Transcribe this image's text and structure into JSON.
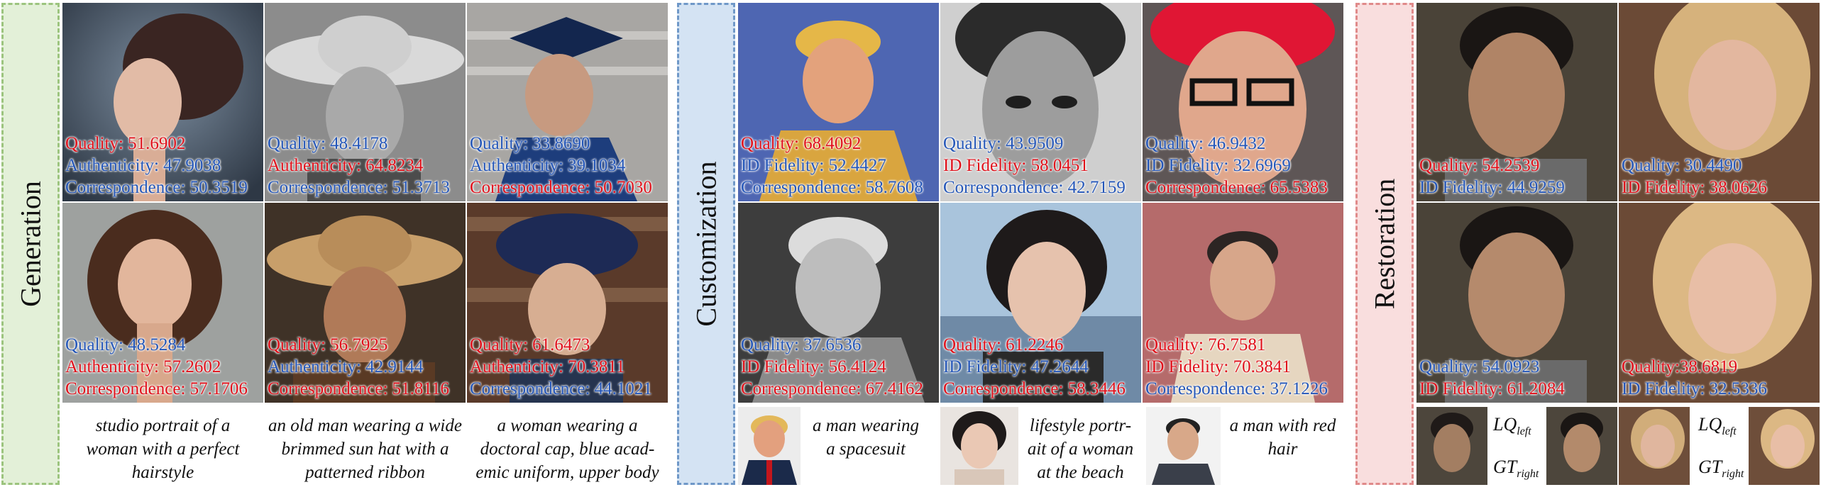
{
  "sections": {
    "generation": "Generation",
    "customization": "Customization",
    "restoration": "Restoration"
  },
  "generation": {
    "cells": [
      {
        "rows": [
          {
            "text": "Quality: 51.6902",
            "color": "red"
          },
          {
            "text": "Authenticity: 47.9038",
            "color": "blue"
          },
          {
            "text": "Correspondence: 50.3519",
            "color": "blue"
          }
        ]
      },
      {
        "rows": [
          {
            "text": "Quality: 48.4178",
            "color": "blue"
          },
          {
            "text": "Authenticity: 64.8234",
            "color": "red"
          },
          {
            "text": "Correspondence: 51.3713",
            "color": "blue"
          }
        ]
      },
      {
        "rows": [
          {
            "text": "Quality: 33.8690",
            "color": "blue"
          },
          {
            "text": "Authenticity: 39.1034",
            "color": "blue"
          },
          {
            "text": "Correspondence: 50.7030",
            "color": "red"
          }
        ]
      },
      {
        "rows": [
          {
            "text": "Quality: 48.5284",
            "color": "blue"
          },
          {
            "text": "Authenticity: 57.2602",
            "color": "red"
          },
          {
            "text": "Correspondence: 57.1706",
            "color": "red"
          }
        ]
      },
      {
        "rows": [
          {
            "text": "Quality: 56.7925",
            "color": "red"
          },
          {
            "text": "Authenticity: 42.9144",
            "color": "blue"
          },
          {
            "text": "Correspondence: 51.8116",
            "color": "red"
          }
        ]
      },
      {
        "rows": [
          {
            "text": "Quality: 61.6473",
            "color": "red"
          },
          {
            "text": "Authenticity: 70.3811",
            "color": "red"
          },
          {
            "text": "Correspondence: 44.1021",
            "color": "blue"
          }
        ]
      }
    ],
    "captions": [
      "studio portrait of a woman with a perfect hairstyle",
      "an old man wearing a wide brimmed sun hat with a patterned ribbon",
      "a woman wearing a doctoral cap, blue acad- emic uniform, upper body"
    ]
  },
  "customization": {
    "cells": [
      {
        "rows": [
          {
            "text": "Quality: 68.4092",
            "color": "red"
          },
          {
            "text": "ID Fidelity: 52.4427",
            "color": "blue"
          },
          {
            "text": "Correspondence: 58.7608",
            "color": "blue"
          }
        ]
      },
      {
        "rows": [
          {
            "text": "Quality: 43.9509",
            "color": "blue"
          },
          {
            "text": "ID Fidelity: 58.0451",
            "color": "red"
          },
          {
            "text": "Correspondence: 42.7159",
            "color": "blue"
          }
        ]
      },
      {
        "rows": [
          {
            "text": "Quality: 46.9432",
            "color": "blue"
          },
          {
            "text": "ID Fidelity: 32.6969",
            "color": "blue"
          },
          {
            "text": "Correspondence: 65.5383",
            "color": "red"
          }
        ]
      },
      {
        "rows": [
          {
            "text": "Quality: 37.6536",
            "color": "blue"
          },
          {
            "text": "ID Fidelity: 56.4124",
            "color": "red"
          },
          {
            "text": "Correspondence: 67.4162",
            "color": "red"
          }
        ]
      },
      {
        "rows": [
          {
            "text": "Quality: 61.2246",
            "color": "red"
          },
          {
            "text": "ID Fidelity: 47.2644",
            "color": "blue"
          },
          {
            "text": "Correspondence: 58.3446",
            "color": "red"
          }
        ]
      },
      {
        "rows": [
          {
            "text": "Quality: 76.7581",
            "color": "red"
          },
          {
            "text": "ID Fidelity: 70.3841",
            "color": "red"
          },
          {
            "text": "Correspondence: 37.1226",
            "color": "blue"
          }
        ]
      }
    ],
    "captions": [
      "a man wearing a spacesuit",
      "lifestyle portr- ait of a woman at the beach",
      "a man with red hair"
    ]
  },
  "restoration": {
    "cells": [
      {
        "rows": [
          {
            "text": "Quality: 54.2539",
            "color": "red"
          },
          {
            "text": "ID Fidelity: 44.9259",
            "color": "blue"
          }
        ]
      },
      {
        "rows": [
          {
            "text": "Quality: 30.4490",
            "color": "blue"
          },
          {
            "text": "ID Fidelity: 38.0626",
            "color": "red"
          }
        ]
      },
      {
        "rows": [
          {
            "text": "Quality: 54.0923",
            "color": "blue"
          },
          {
            "text": "ID Fidelity: 61.2084",
            "color": "red"
          }
        ]
      },
      {
        "rows": [
          {
            "text": "Quality:38.6819",
            "color": "red"
          },
          {
            "text": "ID Fidelity: 32.5336",
            "color": "blue"
          }
        ]
      }
    ],
    "lq": "LQ",
    "lq_sub": "left",
    "gt": "GT",
    "gt_sub": "right"
  },
  "colors": {
    "red": "#e0101a",
    "blue": "#2456b8",
    "gen_band": "#e3f0d8",
    "cust_band": "#d4e3f3",
    "rest_band": "#f9dede"
  }
}
